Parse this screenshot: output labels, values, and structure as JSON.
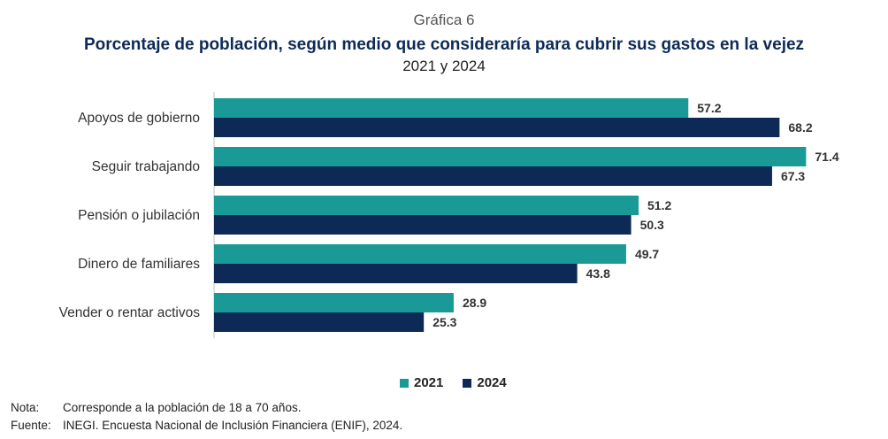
{
  "header": {
    "figure_label": "Gráfica 6",
    "title": "Porcentaje de población, según medio que consideraría para cubrir sus gastos en la vejez",
    "subtitle": "2021 y 2024"
  },
  "chart_data": {
    "type": "bar",
    "orientation": "horizontal",
    "categories": [
      "Apoyos de gobierno",
      "Seguir trabajando",
      "Pensión o jubilación",
      "Dinero de familiares",
      "Vender o rentar activos"
    ],
    "series": [
      {
        "name": "2021",
        "values": [
          57.2,
          71.4,
          51.2,
          49.7,
          28.9
        ],
        "color": "#1a9a96"
      },
      {
        "name": "2024",
        "values": [
          68.2,
          67.3,
          50.3,
          43.8,
          25.3
        ],
        "color": "#0d2a57"
      }
    ],
    "xlim": [
      0,
      72
    ],
    "grid": false,
    "legend_position": "bottom"
  },
  "notes": [
    {
      "key": "Nota:",
      "text": "Corresponde a la población de 18 a 70 años."
    },
    {
      "key": "Fuente:",
      "text": "INEGI. Encuesta Nacional de Inclusión Financiera (ENIF), 2024."
    }
  ]
}
